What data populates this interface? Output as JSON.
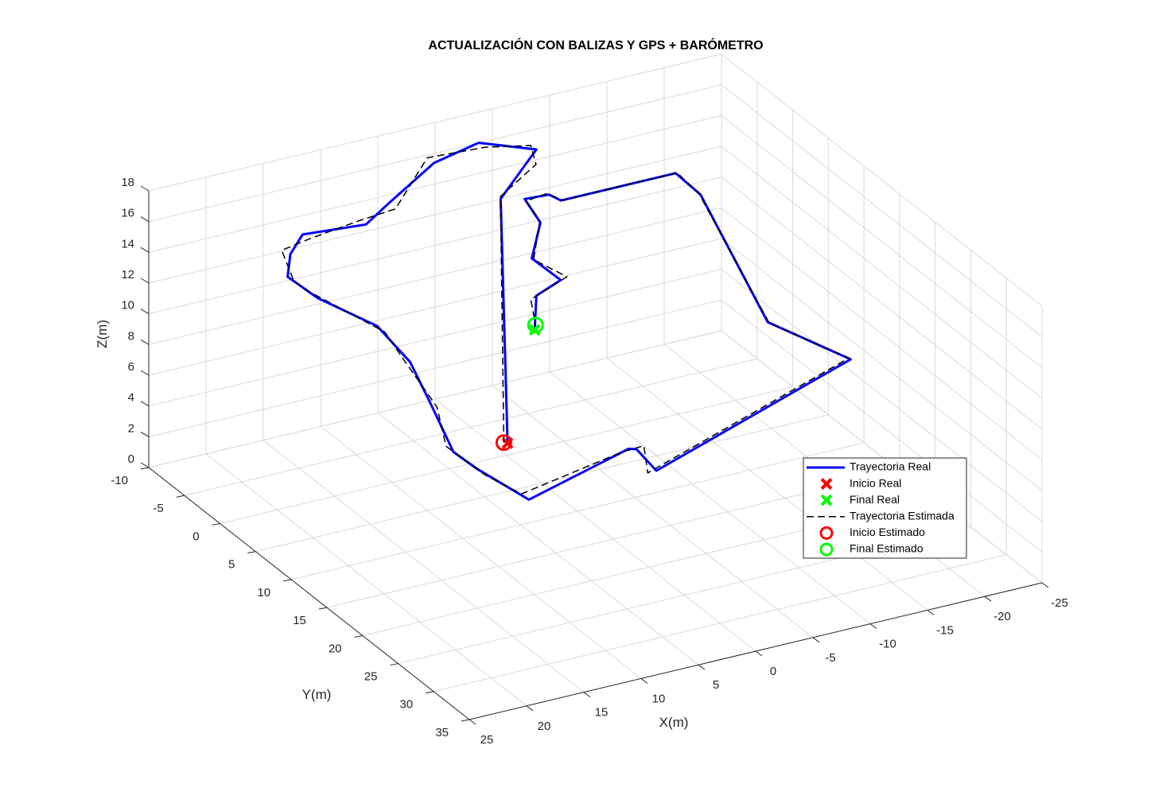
{
  "chart_data": {
    "type": "line3d",
    "title": "ACTUALIZACIÓN CON BALIZAS Y GPS + BARÓMETRO",
    "xlabel": "X(m)",
    "ylabel": "Y(m)",
    "zlabel": "Z(m)",
    "xlim": [
      -25,
      25
    ],
    "ylim": [
      -10,
      35
    ],
    "zlim": [
      0,
      18
    ],
    "xticks": [
      -25,
      -20,
      -15,
      -10,
      -5,
      0,
      5,
      10,
      15,
      20,
      25
    ],
    "yticks": [
      -10,
      -5,
      0,
      5,
      10,
      15,
      20,
      25,
      30,
      35
    ],
    "zticks": [
      0,
      2,
      4,
      6,
      8,
      10,
      12,
      14,
      16,
      18
    ],
    "grid": true,
    "legend": "southeast",
    "series": [
      {
        "name": "Trayectoria Real",
        "color": "#0000ff",
        "style": "solid",
        "x": [
          -1.1,
          -0.5,
          -5.8,
          -7.1,
          -3.8,
          0.9,
          7.3,
          10.7,
          15.8,
          18.3,
          20.4,
          20.2,
          18.6,
          18.8,
          20.2,
          21.6,
          20.8,
          19.3,
          8.3,
          7.8,
          8.3,
          -14.2,
          -10.5,
          -14.9,
          -14.4,
          -12.4,
          -4.4,
          -4.1,
          -2.1,
          -3.1,
          -2.1,
          -3.5,
          -2.5,
          -2.1
        ],
        "y": [
          -1.6,
          -1.6,
          -6.1,
          -7.2,
          -10,
          -8.7,
          -4.7,
          -2.5,
          -3.2,
          -0.9,
          2.1,
          6.0,
          11.8,
          16.7,
          21.7,
          27.3,
          29.4,
          34.2,
          30.5,
          30.8,
          34.4,
          25.5,
          19.8,
          3.3,
          0.6,
          0.6,
          0.6,
          -0.6,
          -0.8,
          -0.2,
          0.2,
          2.0,
          0.2,
          0.6
        ],
        "z": [
          0,
          16,
          16,
          16,
          16,
          16,
          16,
          16,
          16,
          16,
          16,
          16,
          16,
          15.5,
          15,
          14,
          13.5,
          13,
          13,
          13,
          13,
          13,
          14,
          15.5,
          16,
          16,
          16,
          16,
          16,
          14.5,
          12.5,
          11.5,
          10,
          8
        ]
      },
      {
        "name": "Inicio Real",
        "color": "#ff0000",
        "style": "x",
        "x": [
          -1.1
        ],
        "y": [
          -1.6
        ],
        "z": [
          0
        ]
      },
      {
        "name": "Final Real",
        "color": "#00ff00",
        "style": "x",
        "x": [
          -2.1
        ],
        "y": [
          0.6
        ],
        "z": [
          8
        ]
      },
      {
        "name": "Trayectoria Estimada",
        "color": "#000000",
        "style": "dashed",
        "x": [
          -0.9,
          -0.3,
          -6.2,
          -6.8,
          -4.1,
          1.3,
          7.0,
          11.2,
          15.4,
          18.8,
          20.1,
          20.6,
          18.2,
          19.3,
          19.8,
          22.0,
          20.4,
          19.7,
          8.7,
          7.4,
          8.8,
          -13.8,
          -10.9,
          -14.5,
          -14.8,
          -11.9,
          -4.8,
          -3.7,
          -2.4,
          -2.8,
          -2.5,
          -3.8,
          -2.2,
          -2.3
        ],
        "y": [
          -1.8,
          -1.3,
          -5.8,
          -7.5,
          -9.6,
          -9.0,
          -4.3,
          -2.8,
          -2.8,
          -1.3,
          2.5,
          5.6,
          12.2,
          16.3,
          22.1,
          26.9,
          29.8,
          33.8,
          30.1,
          31.2,
          34.0,
          25.9,
          19.4,
          3.7,
          0.2,
          1.0,
          0.2,
          -0.2,
          -1.1,
          0.2,
          -0.2,
          2.4,
          -0.1,
          0.4
        ],
        "z": [
          0,
          16.3,
          15.7,
          16.2,
          15.8,
          16.3,
          15.7,
          16.2,
          15.8,
          16.2,
          15.8,
          16.3,
          15.7,
          15.8,
          14.7,
          14.3,
          13.2,
          13.3,
          12.7,
          13.3,
          12.8,
          13.3,
          13.7,
          15.8,
          15.8,
          16.2,
          15.8,
          16.3,
          15.7,
          14.8,
          12.2,
          11.8,
          9.7,
          8.2
        ]
      },
      {
        "name": "Inicio Estimado",
        "color": "#ff0000",
        "style": "o",
        "x": [
          -0.9
        ],
        "y": [
          -1.8
        ],
        "z": [
          0
        ]
      },
      {
        "name": "Final Estimado",
        "color": "#00ff00",
        "style": "o",
        "x": [
          -2.3
        ],
        "y": [
          0.4
        ],
        "z": [
          8.2
        ]
      }
    ]
  }
}
